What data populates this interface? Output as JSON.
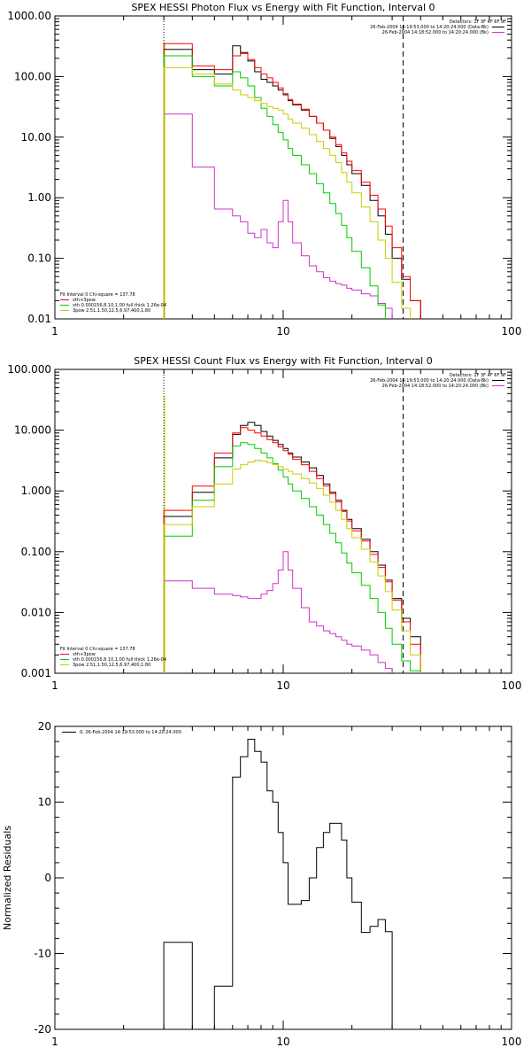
{
  "chart_data": [
    {
      "type": "line",
      "step": true,
      "title": "SPEX HESSI Photon Flux vs Energy with Fit Function, Interval 0",
      "xscale": "log",
      "yscale": "log",
      "xlim": [
        1,
        100
      ],
      "ylim": [
        0.01,
        1000
      ],
      "x_ticks": [
        1,
        10,
        100
      ],
      "x_tick_labels": [
        "1",
        "10",
        "100"
      ],
      "y_ticks": [
        0.01,
        0.1,
        1,
        10,
        100,
        1000
      ],
      "y_tick_labels": [
        "0.01",
        "0.10",
        "1.00",
        "10.00",
        "100.00",
        "1000.00"
      ],
      "xlabel": "",
      "ylabel": "",
      "ref_lines": [
        {
          "x": 3,
          "style": "dotted"
        },
        {
          "x": 33.5,
          "style": "dashed"
        }
      ],
      "yellow_edge_x": 3,
      "legend_top": [
        {
          "text": "Detectors: 1F 3F 4F 6F 9F",
          "color": null
        },
        {
          "text": "26-Feb-2004 14:19:53.000 to 14:20:24.000 (Data-Bk)",
          "color": "#000000"
        },
        {
          "text": "26-Feb-2004 14:18:52.000 to 14:20:24.000 (Bk)",
          "color": "#cc33cc"
        }
      ],
      "legend_bottom": [
        {
          "text": "Fit Interval 0   Chi-square = 137.78",
          "color": null
        },
        {
          "text": "vth+3pow",
          "color": "#ff0000"
        },
        {
          "text": "vth 0.000156,8.10,1.00  full thick 1.26e-04",
          "color": "#00cc00"
        },
        {
          "text": "3pow 2.51,1.50,12.5,6.97,400,1.80",
          "color": "#cccc00"
        }
      ],
      "edges": [
        3,
        4,
        5,
        6,
        6.5,
        7,
        7.5,
        8,
        8.5,
        9,
        9.5,
        10,
        10.5,
        11,
        12,
        13,
        14,
        15,
        16,
        17,
        18,
        19,
        20,
        22,
        24,
        26,
        28,
        30,
        33,
        36,
        40
      ],
      "series": [
        {
          "name": "Data-Bk",
          "color": "#000000",
          "values": [
            280,
            130,
            110,
            320,
            250,
            180,
            120,
            90,
            80,
            70,
            60,
            50,
            40,
            34,
            28,
            22,
            17,
            13,
            9.5,
            7,
            5,
            3.5,
            2.5,
            1.6,
            0.9,
            0.5,
            0.25,
            0.1,
            0.045,
            0.02
          ]
        },
        {
          "name": "Bk",
          "color": "#cc33cc",
          "values": [
            24,
            3.2,
            0.65,
            0.5,
            0.4,
            0.26,
            0.22,
            0.3,
            0.18,
            0.15,
            0.4,
            0.9,
            0.4,
            0.18,
            0.11,
            0.075,
            0.06,
            0.048,
            0.042,
            0.038,
            0.036,
            0.032,
            0.03,
            0.026,
            0.024,
            0.018,
            0.015,
            0.0,
            0.0,
            0.0
          ]
        },
        {
          "name": "vth+3pow",
          "color": "#ff0000",
          "values": [
            350,
            150,
            130,
            220,
            240,
            190,
            140,
            110,
            95,
            80,
            65,
            52,
            42,
            35,
            29,
            22,
            17,
            13,
            10,
            7.5,
            5.5,
            4,
            2.8,
            1.8,
            1.1,
            0.65,
            0.34,
            0.15,
            0.05,
            0.02
          ]
        },
        {
          "name": "vth",
          "color": "#00cc00",
          "values": [
            220,
            100,
            70,
            120,
            95,
            70,
            45,
            30,
            22,
            16,
            12,
            9,
            6.5,
            5,
            3.5,
            2.5,
            1.7,
            1.2,
            0.8,
            0.55,
            0.35,
            0.22,
            0.13,
            0.07,
            0.035,
            0.017,
            0.0,
            0.0,
            0.0,
            0.0
          ]
        },
        {
          "name": "3pow",
          "color": "#cccc00",
          "values": [
            140,
            110,
            75,
            60,
            50,
            45,
            40,
            36,
            32,
            30,
            28,
            24,
            20,
            17,
            14,
            11,
            8.5,
            6.5,
            5,
            3.8,
            2.6,
            1.8,
            1.2,
            0.7,
            0.4,
            0.2,
            0.1,
            0.04,
            0.015,
            0.0
          ]
        }
      ]
    },
    {
      "type": "line",
      "step": true,
      "title": "SPEX HESSI Count Flux vs Energy with Fit Function, Interval 0",
      "xscale": "log",
      "yscale": "log",
      "xlim": [
        1,
        100
      ],
      "ylim": [
        0.001,
        100
      ],
      "x_ticks": [
        1,
        10,
        100
      ],
      "x_tick_labels": [
        "1",
        "10",
        "100"
      ],
      "y_ticks": [
        0.001,
        0.01,
        0.1,
        1,
        10,
        100
      ],
      "y_tick_labels": [
        "0.001",
        "0.010",
        "0.100",
        "1.000",
        "10.000",
        "100.000"
      ],
      "xlabel": "",
      "ylabel": "",
      "ref_lines": [
        {
          "x": 3,
          "style": "dotted"
        },
        {
          "x": 33.5,
          "style": "dashed"
        }
      ],
      "yellow_edge_x": 3,
      "legend_top": [
        {
          "text": "Detectors: 1F 3F 4F 6F 9F",
          "color": null
        },
        {
          "text": "26-Feb-2004 14:19:53.000 to 14:20:24.000 (Data-Bk)",
          "color": "#000000"
        },
        {
          "text": "26-Feb-2004 14:18:52.000 to 14:20:24.000 (Bk)",
          "color": "#cc33cc"
        }
      ],
      "legend_bottom": [
        {
          "text": "Fit Interval 0   Chi-square = 137.78",
          "color": null
        },
        {
          "text": "vth+3pow",
          "color": "#ff0000"
        },
        {
          "text": "vth 0.000156,8.10,1.00  full thick 1.26e-04",
          "color": "#00cc00"
        },
        {
          "text": "3pow 2.51,1.50,12.5,6.97,400,1.80",
          "color": "#cccc00"
        }
      ],
      "edges": [
        3,
        4,
        5,
        6,
        6.5,
        7,
        7.5,
        8,
        8.5,
        9,
        9.5,
        10,
        10.5,
        11,
        12,
        13,
        14,
        15,
        16,
        17,
        18,
        19,
        20,
        22,
        24,
        26,
        28,
        30,
        33,
        36,
        40
      ],
      "series": [
        {
          "name": "Data-Bk",
          "color": "#000000",
          "values": [
            0.38,
            0.95,
            3.5,
            8.5,
            12,
            13.5,
            12,
            9.5,
            8,
            6.8,
            5.8,
            5,
            4.2,
            3.6,
            3,
            2.4,
            1.8,
            1.3,
            0.95,
            0.7,
            0.48,
            0.34,
            0.24,
            0.16,
            0.1,
            0.06,
            0.034,
            0.017,
            0.008,
            0.004
          ]
        },
        {
          "name": "Bk",
          "color": "#cc33cc",
          "values": [
            0.033,
            0.025,
            0.02,
            0.019,
            0.018,
            0.017,
            0.017,
            0.02,
            0.023,
            0.03,
            0.05,
            0.1,
            0.05,
            0.025,
            0.012,
            0.007,
            0.006,
            0.005,
            0.0045,
            0.004,
            0.0035,
            0.003,
            0.0028,
            0.0024,
            0.002,
            0.0015,
            0.0012,
            0.0,
            0.0,
            0.0
          ]
        },
        {
          "name": "vth+3pow",
          "color": "#ff0000",
          "values": [
            0.48,
            1.2,
            4.2,
            9,
            11,
            10,
            9,
            8,
            7,
            6.2,
            5.3,
            4.6,
            4,
            3.3,
            2.7,
            2.1,
            1.6,
            1.2,
            0.9,
            0.66,
            0.46,
            0.32,
            0.22,
            0.15,
            0.09,
            0.055,
            0.032,
            0.016,
            0.007,
            0.003
          ]
        },
        {
          "name": "vth",
          "color": "#00cc00",
          "values": [
            0.18,
            0.7,
            2.5,
            5.5,
            6.2,
            5.8,
            5,
            4.2,
            3.5,
            2.8,
            2.2,
            1.7,
            1.3,
            1.0,
            0.75,
            0.55,
            0.4,
            0.28,
            0.2,
            0.14,
            0.095,
            0.065,
            0.045,
            0.028,
            0.017,
            0.01,
            0.0055,
            0.003,
            0.0016,
            0.0011
          ]
        },
        {
          "name": "3pow",
          "color": "#cccc00",
          "values": [
            0.28,
            0.55,
            1.3,
            2.3,
            2.7,
            3.0,
            3.2,
            3.1,
            2.9,
            2.7,
            2.5,
            2.3,
            2.1,
            1.9,
            1.6,
            1.35,
            1.1,
            0.85,
            0.65,
            0.48,
            0.34,
            0.24,
            0.17,
            0.11,
            0.068,
            0.04,
            0.022,
            0.011,
            0.005,
            0.002
          ]
        }
      ]
    },
    {
      "type": "line",
      "step": true,
      "title": "",
      "xscale": "log",
      "yscale": "linear",
      "xlim": [
        1,
        100
      ],
      "ylim": [
        -20,
        20
      ],
      "x_ticks": [
        1,
        10,
        100
      ],
      "x_tick_labels": [
        "1",
        "10",
        "100"
      ],
      "y_ticks": [
        -20,
        -10,
        0,
        10,
        20
      ],
      "y_tick_labels": [
        "-20",
        "-10",
        "0",
        "10",
        "20"
      ],
      "xlabel": "",
      "ylabel": "Normalized Residuals",
      "legend_top": [
        {
          "text": "0, 26-Feb-2004 14:19:53.000 to 14:20:24.000",
          "color": "#000000"
        }
      ],
      "edges": [
        3,
        4,
        5,
        6,
        6.5,
        7,
        7.5,
        8,
        8.5,
        9,
        9.5,
        10,
        10.5,
        11,
        12,
        13,
        14,
        15,
        16,
        17,
        18,
        19,
        20,
        22,
        24,
        26,
        28,
        30,
        33
      ],
      "series": [
        {
          "name": "",
          "color": "#000000",
          "values": [
            -8.5,
            -20.3,
            -14.3,
            13.3,
            16,
            18.3,
            16.7,
            15.3,
            11.5,
            10,
            6,
            2,
            -3.5,
            -3.5,
            -3,
            0,
            4,
            6,
            7.2,
            7.2,
            5,
            0,
            -3.2,
            -7.2,
            -6.4,
            -5.5,
            -7.1,
            -20
          ]
        }
      ]
    }
  ]
}
